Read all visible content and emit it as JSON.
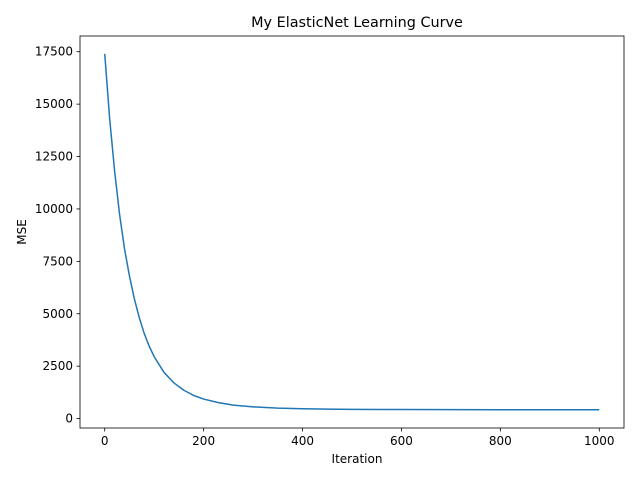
{
  "chart_data": {
    "type": "line",
    "title": "My ElasticNet Learning Curve",
    "xlabel": "Iteration",
    "ylabel": "MSE",
    "xlim": [
      -50,
      1050
    ],
    "ylim": [
      -450,
      18250
    ],
    "xticks": [
      0,
      200,
      400,
      600,
      800,
      1000
    ],
    "yticks": [
      0,
      2500,
      5000,
      7500,
      10000,
      12500,
      15000,
      17500
    ],
    "grid": false,
    "legend": "none",
    "series": [
      {
        "color": "#1f77b4",
        "x": [
          0,
          10,
          20,
          30,
          40,
          50,
          60,
          70,
          80,
          90,
          100,
          120,
          140,
          160,
          180,
          200,
          230,
          260,
          300,
          350,
          400,
          450,
          500,
          600,
          700,
          800,
          900,
          1000
        ],
        "values": [
          17400,
          14300,
          11800,
          9750,
          8100,
          6800,
          5700,
          4800,
          4050,
          3450,
          2950,
          2200,
          1700,
          1350,
          1100,
          930,
          760,
          640,
          560,
          500,
          470,
          450,
          440,
          430,
          425,
          420,
          420,
          420
        ]
      }
    ]
  }
}
